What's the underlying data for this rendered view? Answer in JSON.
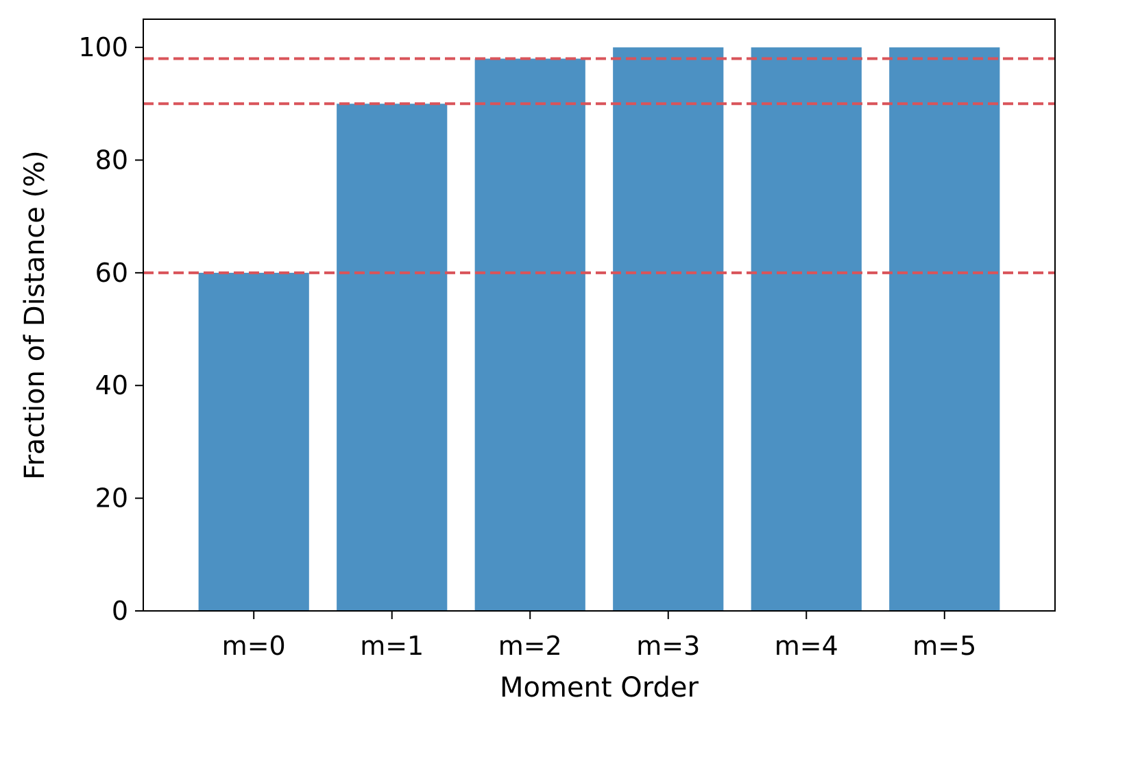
{
  "chart_data": {
    "type": "bar",
    "title": "",
    "xlabel": "Moment Order",
    "ylabel": "Fraction of Distance (%)",
    "categories": [
      "m=0",
      "m=1",
      "m=2",
      "m=3",
      "m=4",
      "m=5"
    ],
    "values": [
      60,
      90,
      98,
      100,
      100,
      100
    ],
    "ylim": [
      0,
      105
    ],
    "yticks": [
      0,
      20,
      40,
      60,
      80,
      100
    ],
    "grid": false,
    "legend": "none",
    "bar_color": "#4C91C3",
    "reference_lines": {
      "orientation": "horizontal",
      "style": "dashed",
      "color": "#D9545A",
      "values": [
        98,
        90,
        60
      ]
    }
  }
}
